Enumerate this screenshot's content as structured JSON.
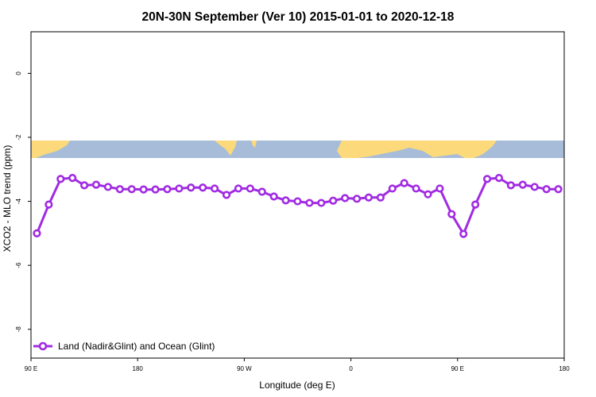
{
  "chart_data": {
    "type": "line",
    "title": "20N-30N September (Ver 10)   2015-01-01 to 2020-12-18",
    "xlabel": "Longitude (deg E)",
    "ylabel": "XCO2 - MLO trend (ppm)",
    "xlim": [
      90,
      540
    ],
    "ylim": [
      -8.9,
      1.3
    ],
    "x_ticks": [
      {
        "value": 90,
        "label": "90 E"
      },
      {
        "value": 180,
        "label": "180"
      },
      {
        "value": 270,
        "label": "90 W"
      },
      {
        "value": 360,
        "label": "0"
      },
      {
        "value": 450,
        "label": "90 E"
      },
      {
        "value": 540,
        "label": "180"
      }
    ],
    "y_ticks": [
      {
        "value": 0,
        "label": "0"
      },
      {
        "value": -2,
        "label": "-2"
      },
      {
        "value": -4,
        "label": "-4"
      },
      {
        "value": -6,
        "label": "-6"
      },
      {
        "value": -8,
        "label": "-8"
      }
    ],
    "grid": false,
    "legend_position": "bottom-left",
    "colors": {
      "line": "#a12be2",
      "ocean": "#a7bcd9",
      "land": "#fcd97a"
    },
    "background_map": {
      "description_type": "world-map-strip",
      "y_range": [
        -2.5,
        -2.0
      ]
    },
    "series": [
      {
        "name": "Land (Nadir&Glint) and Ocean (Glint)",
        "x": [
          95,
          105,
          115,
          125,
          135,
          145,
          155,
          165,
          175,
          185,
          195,
          205,
          215,
          225,
          235,
          245,
          255,
          265,
          275,
          285,
          295,
          305,
          315,
          325,
          335,
          345,
          355,
          365,
          375,
          385,
          395,
          405,
          415,
          425,
          435,
          445,
          455,
          465,
          475,
          485,
          495,
          505,
          515,
          525,
          535
        ],
        "y": [
          -5.0,
          -4.1,
          -3.3,
          -3.27,
          -3.5,
          -3.48,
          -3.55,
          -3.62,
          -3.62,
          -3.63,
          -3.63,
          -3.62,
          -3.6,
          -3.57,
          -3.57,
          -3.6,
          -3.8,
          -3.6,
          -3.6,
          -3.7,
          -3.85,
          -3.97,
          -4.0,
          -4.05,
          -4.05,
          -3.98,
          -3.9,
          -3.92,
          -3.88,
          -3.88,
          -3.6,
          -3.43,
          -3.6,
          -3.78,
          -3.6,
          -4.4,
          -5.02,
          -4.1,
          -3.3,
          -3.27,
          -3.5,
          -3.48,
          -3.55,
          -3.62,
          -3.62
        ]
      }
    ]
  }
}
